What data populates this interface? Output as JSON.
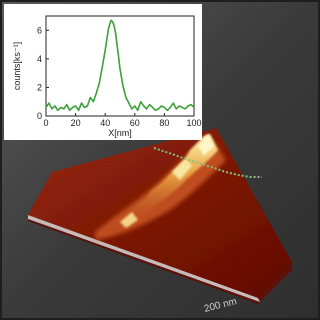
{
  "chart_data": {
    "type": "line",
    "xlabel": "X[nm]",
    "ylabel": "counts[ks⁻¹]",
    "xlim": [
      0,
      100
    ],
    "ylim": [
      0,
      7
    ],
    "xticks": [
      0,
      20,
      40,
      60,
      80,
      100
    ],
    "yticks": [
      0,
      2,
      4,
      6
    ],
    "series": [
      {
        "color": "#3da03a",
        "x": [
          0,
          2,
          4,
          6,
          8,
          10,
          12,
          14,
          16,
          18,
          20,
          22,
          24,
          26,
          28,
          30,
          32,
          34,
          36,
          38,
          40,
          41,
          42,
          43,
          44,
          45,
          46,
          47,
          48,
          49,
          50,
          52,
          54,
          56,
          58,
          60,
          62,
          64,
          66,
          68,
          70,
          72,
          74,
          76,
          78,
          80,
          82,
          84,
          86,
          88,
          90,
          92,
          94,
          96,
          98,
          100
        ],
        "y": [
          0.6,
          0.9,
          0.5,
          0.7,
          0.4,
          0.6,
          0.5,
          0.8,
          0.4,
          0.6,
          0.7,
          0.4,
          0.9,
          0.6,
          0.7,
          1.3,
          1.0,
          1.6,
          2.3,
          3.4,
          4.6,
          5.3,
          6.0,
          6.4,
          6.7,
          6.6,
          6.3,
          5.8,
          5.0,
          4.2,
          3.3,
          2.1,
          1.3,
          0.9,
          0.5,
          0.7,
          0.4,
          1.0,
          0.7,
          0.5,
          0.8,
          0.6,
          0.4,
          0.5,
          0.7,
          0.6,
          0.4,
          0.6,
          0.9,
          0.5,
          0.7,
          0.6,
          0.5,
          0.7,
          0.8,
          0.6
        ]
      }
    ]
  },
  "surface": {
    "scale_label": "200 nm",
    "base_color": "#8a1f10",
    "ridge_color": "#f2e28a",
    "profile_line_color": "#86c07c"
  }
}
